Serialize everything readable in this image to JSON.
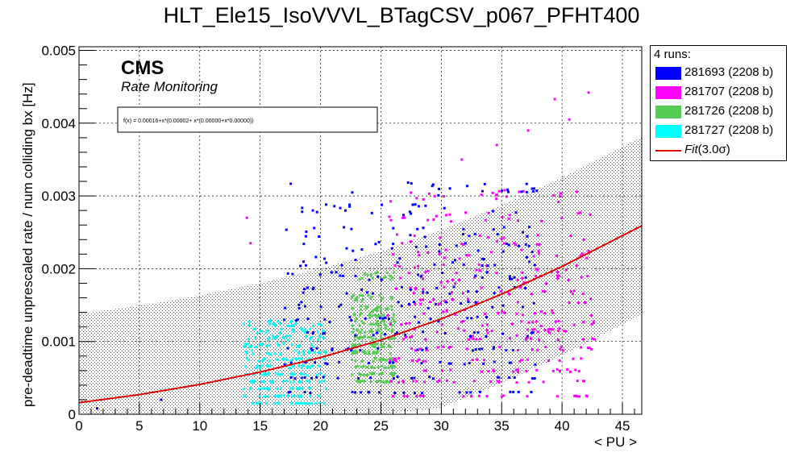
{
  "chart_data": {
    "type": "scatter",
    "title": "HLT_Ele15_IsoVVVL_BTagCSV_p067_PFHT400",
    "xlabel": "< PU >",
    "ylabel": "pre-deadtime unprescaled rate / num colliding bx [Hz]",
    "xlim": [
      0,
      46.6
    ],
    "ylim": [
      0,
      0.00505
    ],
    "x_ticks": [
      "0",
      "5",
      "10",
      "15",
      "20",
      "25",
      "30",
      "35",
      "40",
      "45"
    ],
    "x_tick_values": [
      0,
      5,
      10,
      15,
      20,
      25,
      30,
      35,
      40,
      45
    ],
    "y_ticks": [
      "0",
      "0.001",
      "0.002",
      "0.003",
      "0.004",
      "0.005"
    ],
    "y_tick_values": [
      0,
      0.001,
      0.002,
      0.003,
      0.004,
      0.005
    ],
    "grid": true,
    "legend_position": "right",
    "annotations": {
      "experiment": "CMS",
      "subtitle": "Rate Monitoring",
      "fit_formula": "f(x) = 0.00016+x*(0.00002+ x*(0.00000+x*0.00000))"
    },
    "legend": {
      "header": "4 runs:",
      "entries": [
        {
          "label": "281693 (2208 b)",
          "color": "#0000ff"
        },
        {
          "label": "281707 (2208 b)",
          "color": "#ff00ff"
        },
        {
          "label": "281726 (2208 b)",
          "color": "#55cc55"
        },
        {
          "label": "281727 (2208 b)",
          "color": "#00ffff"
        }
      ],
      "fit_label": "Fit",
      "fit_sigma": "(3.0σ)"
    },
    "fit": {
      "color": "#dd0000",
      "curve": [
        [
          0,
          0.00016
        ],
        [
          5,
          0.00027
        ],
        [
          10,
          0.00041
        ],
        [
          15,
          0.00058
        ],
        [
          20,
          0.00078
        ],
        [
          25,
          0.00102
        ],
        [
          30,
          0.00131
        ],
        [
          35,
          0.00165
        ],
        [
          40,
          0.00203
        ],
        [
          46.6,
          0.00259
        ]
      ],
      "band_upper": [
        [
          0,
          0.00138
        ],
        [
          5,
          0.00149
        ],
        [
          10,
          0.00163
        ],
        [
          15,
          0.0018
        ],
        [
          20,
          0.002
        ],
        [
          25,
          0.00224
        ],
        [
          30,
          0.00253
        ],
        [
          35,
          0.00287
        ],
        [
          40,
          0.00325
        ],
        [
          46.6,
          0.00381
        ]
      ],
      "band_lower": [
        [
          0,
          0
        ],
        [
          5,
          0
        ],
        [
          10,
          0
        ],
        [
          15,
          0
        ],
        [
          20,
          0
        ],
        [
          25,
          0
        ],
        [
          30,
          9e-05
        ],
        [
          35,
          0.00043
        ],
        [
          40,
          0.00081
        ],
        [
          46.6,
          0.00137
        ]
      ]
    },
    "series": [
      {
        "name": "281727 (2208 b)",
        "color": "#00ffff",
        "x_range": [
          13.6,
          20.5
        ],
        "y_rows": [
          0.00015,
          0.00025,
          0.00035,
          0.00045,
          0.00055,
          0.00065,
          0.00075,
          0.00085,
          0.00095,
          0.00105,
          0.00115,
          0.00125
        ]
      },
      {
        "name": "281726 (2208 b)",
        "color": "#55cc55",
        "x_range": [
          22.6,
          26.2
        ],
        "y_rows": [
          0.00045,
          0.00055,
          0.00065,
          0.00075,
          0.00085,
          0.00095,
          0.00105,
          0.00115,
          0.00125,
          0.00135,
          0.00145,
          0.0016,
          0.0019
        ]
      },
      {
        "name": "281707 (2208 b)",
        "color": "#ff00ff",
        "x_range": [
          25.5,
          42.7
        ],
        "y_rows": [
          0.00025,
          0.00045,
          0.0006,
          0.00075,
          0.0009,
          0.00105,
          0.00115,
          0.00125,
          0.0014,
          0.00155,
          0.0017,
          0.00185,
          0.002,
          0.0022,
          0.0024,
          0.0027,
          0.003
        ]
      },
      {
        "name": "281693 (2208 b)",
        "color": "#0000ff",
        "x_range": [
          17.0,
          38.0
        ],
        "y_rows": [
          0.0003,
          0.0005,
          0.0007,
          0.0009,
          0.0011,
          0.0013,
          0.0015,
          0.0017,
          0.0019,
          0.0021,
          0.0023,
          0.0025,
          0.0028,
          0.0031
        ]
      }
    ],
    "outliers": [
      {
        "x": 14.2,
        "y": 0.00235,
        "color": "#ff00ff"
      },
      {
        "x": 39.4,
        "y": 0.00433,
        "color": "#ff00ff"
      },
      {
        "x": 42.2,
        "y": 0.00442,
        "color": "#ff00ff"
      },
      {
        "x": 40.6,
        "y": 0.00405,
        "color": "#ff00ff"
      },
      {
        "x": 37.2,
        "y": 0.0039,
        "color": "#ff00ff"
      },
      {
        "x": 34.6,
        "y": 0.0037,
        "color": "#ff00ff"
      },
      {
        "x": 31.7,
        "y": 0.0035,
        "color": "#ff00ff"
      },
      {
        "x": 1.5,
        "y": 8e-05,
        "color": "#0000ff"
      },
      {
        "x": 6.8,
        "y": 0.0002,
        "color": "#0000ff"
      },
      {
        "x": 13.9,
        "y": 0.0027,
        "color": "#ff00ff"
      }
    ]
  }
}
